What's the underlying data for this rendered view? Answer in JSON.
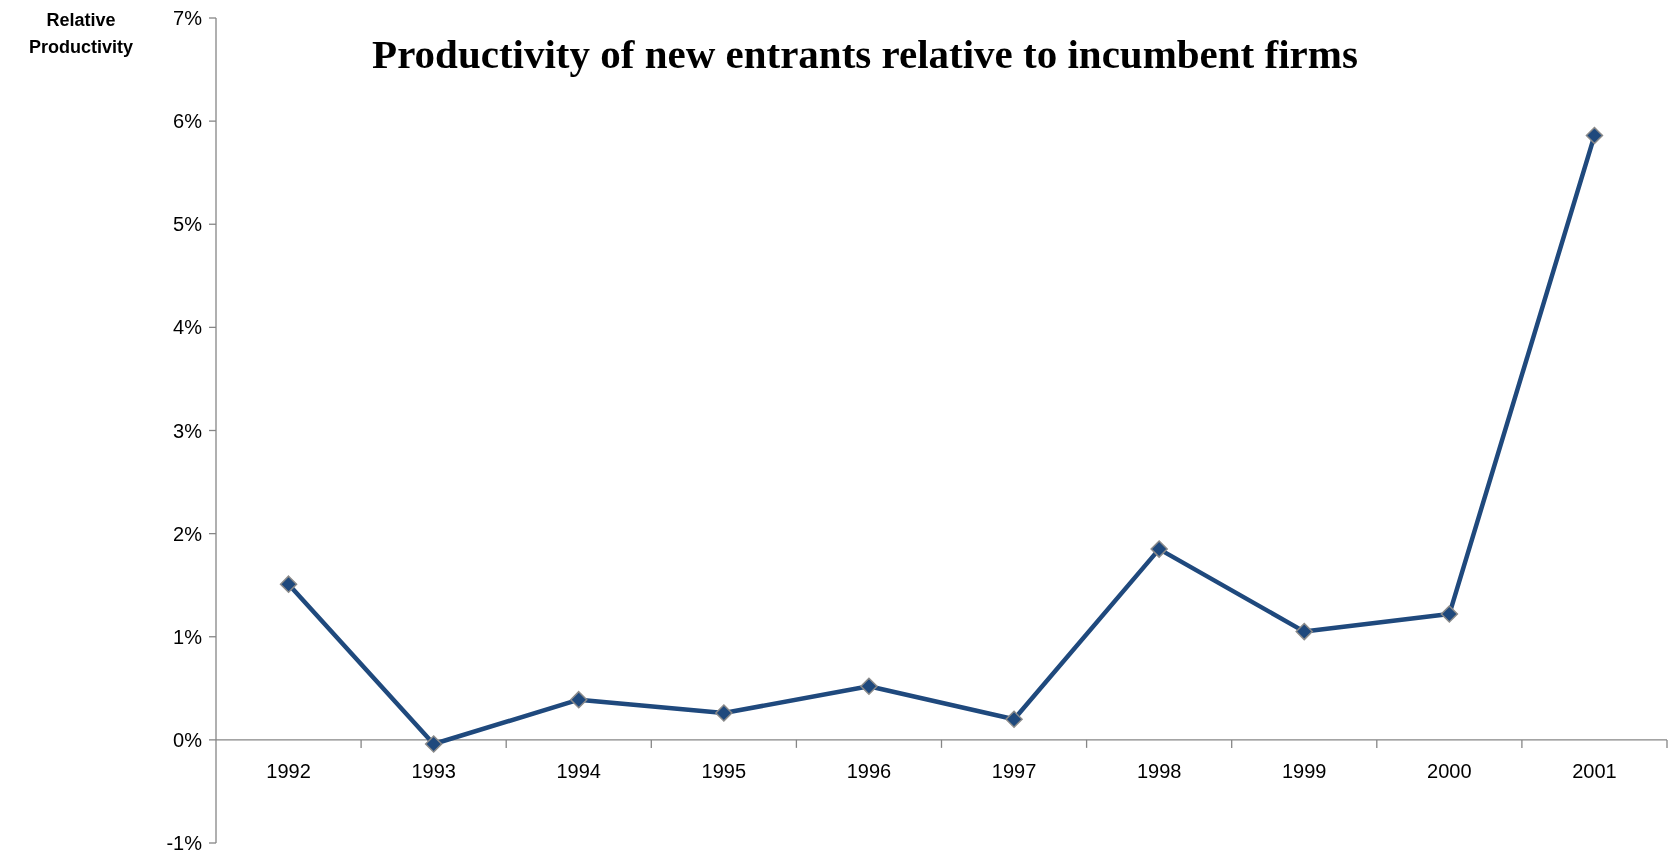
{
  "chart_data": {
    "type": "line",
    "title": "Productivity of new entrants relative to incumbent firms",
    "ylabel": "Relative Productivity",
    "categories": [
      "1992",
      "1993",
      "1994",
      "1995",
      "1996",
      "1997",
      "1998",
      "1999",
      "2000",
      "2001"
    ],
    "series": [
      {
        "color": "#1f497d",
        "values": [
          1.51,
          -0.04,
          0.39,
          0.26,
          0.52,
          0.2,
          1.85,
          1.05,
          1.22,
          5.86
        ]
      }
    ],
    "ylim": [
      -1,
      7
    ],
    "yticks": [
      {
        "value": -1,
        "label": "-1%"
      },
      {
        "value": 0,
        "label": "0%"
      },
      {
        "value": 1,
        "label": "1%"
      },
      {
        "value": 2,
        "label": "2%"
      },
      {
        "value": 3,
        "label": "3%"
      },
      {
        "value": 4,
        "label": "4%"
      },
      {
        "value": 5,
        "label": "5%"
      },
      {
        "value": 6,
        "label": "6%"
      },
      {
        "value": 7,
        "label": "7%"
      }
    ],
    "grid": false,
    "marker": "diamond",
    "line_style": "solid"
  }
}
